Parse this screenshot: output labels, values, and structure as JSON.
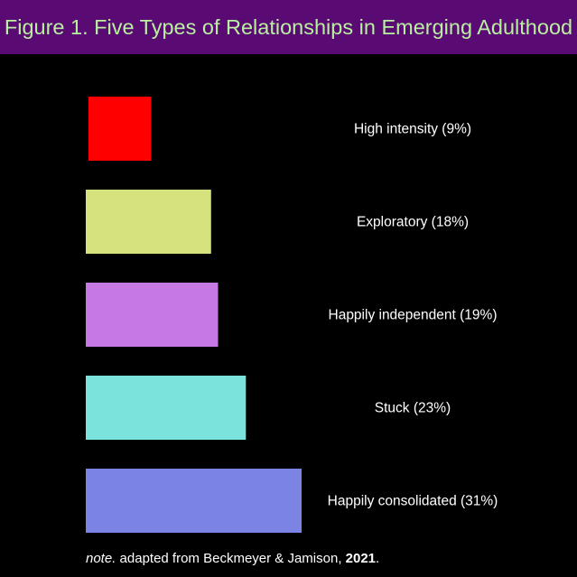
{
  "title": "Figure 1. Five Types of Relationships in Emerging Adulthood",
  "colors": {
    "title_bar_bg": "#5a0a73",
    "title_text": "#b8f0a0",
    "background": "#000000",
    "label_text": "#ffffff"
  },
  "chart_data": {
    "type": "bar",
    "orientation": "horizontal",
    "title": "Figure 1. Five Types of Relationships in Emerging Adulthood",
    "xlabel": "",
    "ylabel": "",
    "grid": false,
    "legend": "none",
    "categories": [
      "High intensity",
      "Exploratory",
      "Happily independent",
      "Stuck",
      "Happily consolidated"
    ],
    "values": [
      9,
      18,
      19,
      23,
      31
    ],
    "units": "%",
    "labels": [
      "High intensity (9%)",
      "Exploratory (18%)",
      "Happily independent (19%)",
      "Stuck (23%)",
      "Happily consolidated (31%)"
    ],
    "bar_colors": [
      "#ff0000",
      "#d6e27e",
      "#c779e3",
      "#7be3dc",
      "#7b83e3"
    ],
    "xlim": [
      0,
      31
    ]
  },
  "note": {
    "italic": "note.",
    "text": " adapted from Beckmeyer & Jamison, ",
    "year": "2021",
    "end": "."
  }
}
